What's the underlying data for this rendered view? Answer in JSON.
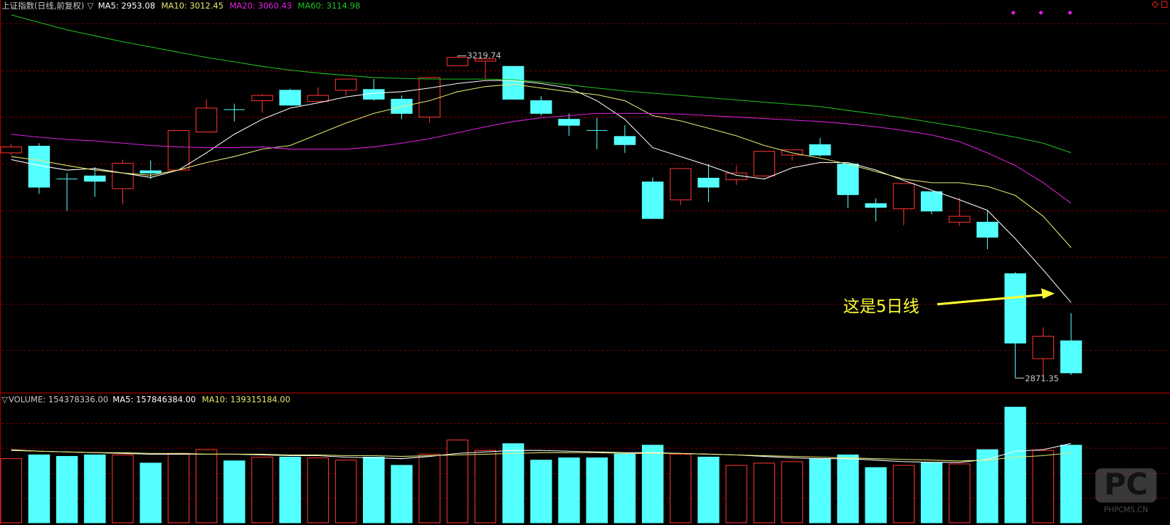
{
  "chart_data": [
    {
      "type": "candlestick",
      "title": "上证指数(日线,前复权)",
      "marker": "▽",
      "up_color": "#ff3232",
      "down_color": "#54ffff",
      "ylim": [
        2856.8,
        3280.2
      ],
      "ygrid": [
        3254.4,
        3203.6,
        3153.6,
        3102.8,
        3052.0,
        3002.0,
        2951.2,
        2901.2
      ],
      "open": [
        3114.9,
        3122.1,
        3086.6,
        3089.9,
        3076.2,
        3095.5,
        3096.3,
        3137.5,
        3161.6,
        3171.3,
        3182.6,
        3170.5,
        3182.6,
        3183.4,
        3172.9,
        3153.6,
        3209.2,
        3214.1,
        3208.4,
        3171.3,
        3151.2,
        3139.1,
        3132.6,
        3083.4,
        3064.1,
        3087.5,
        3085.8,
        3089.9,
        3112.5,
        3123.8,
        3102.8,
        3060.0,
        3054.4,
        3072.9,
        3039.9,
        3039.9,
        2984.2,
        2892.3,
        2911.6
      ],
      "close": [
        3121.3,
        3077.8,
        3086.6,
        3084.2,
        3103.6,
        3093.1,
        3139.1,
        3163.3,
        3161.6,
        3177.0,
        3166.5,
        3177.0,
        3194.7,
        3172.9,
        3157.6,
        3196.3,
        3218.1,
        3216.5,
        3172.9,
        3157.6,
        3144.7,
        3139.1,
        3123.8,
        3043.9,
        3097.9,
        3077.8,
        3093.1,
        3116.5,
        3118.1,
        3112.5,
        3069.7,
        3056.0,
        3081.8,
        3052.0,
        3046.3,
        3023.7,
        2909.2,
        2916.5,
        2877.0
      ],
      "high": [
        3124.6,
        3125.4,
        3093.1,
        3099.5,
        3107.6,
        3106.8,
        3139.1,
        3172.9,
        3168.1,
        3178.6,
        3184.2,
        3185.8,
        3194.7,
        3194.7,
        3177.0,
        3197.1,
        3219.74,
        3216.5,
        3208.4,
        3176.2,
        3157.6,
        3152.8,
        3144.7,
        3088.3,
        3097.9,
        3102.8,
        3101.2,
        3116.5,
        3118.1,
        3131.0,
        3104.4,
        3065.7,
        3081.8,
        3072.9,
        3066.5,
        3052.0,
        2985.8,
        2926.2,
        2941.5
      ],
      "low": [
        3112.5,
        3070.5,
        3052.0,
        3067.3,
        3059.2,
        3086.6,
        3096.3,
        3137.5,
        3148.8,
        3158.4,
        3166.5,
        3169.7,
        3177.0,
        3171.3,
        3151.2,
        3147.9,
        3209.2,
        3195.5,
        3172.9,
        3155.2,
        3133.4,
        3118.9,
        3114.9,
        3043.9,
        3058.4,
        3061.6,
        3080.2,
        3089.9,
        3106.8,
        3110.9,
        3055.2,
        3040.7,
        3036.6,
        3048.7,
        3035.8,
        3010.8,
        2871.35,
        2873.0,
        2874.6
      ],
      "ma": [
        {
          "name": "MA5",
          "legend": "MA5: 2953.08",
          "color": "#ffffff",
          "values": [
            3107.6,
            3101.2,
            3096.3,
            3097.9,
            3093.1,
            3088.3,
            3096.3,
            3114.9,
            3135.0,
            3151.2,
            3163.3,
            3168.9,
            3175.4,
            3179.4,
            3181.0,
            3185.0,
            3189.9,
            3193.1,
            3193.1,
            3189.9,
            3185.0,
            3171.3,
            3151.2,
            3120.5,
            3110.9,
            3101.2,
            3090.7,
            3086.6,
            3098.7,
            3104.4,
            3104.4,
            3096.3,
            3085.0,
            3074.5,
            3064.1,
            3052.8,
            3022.1,
            2988.3,
            2953.08
          ]
        },
        {
          "name": "MA10",
          "legend": "MA10: 3012.45",
          "color": "#e8e870",
          "values": [
            3110.9,
            3106.8,
            3101.2,
            3096.3,
            3093.1,
            3090.7,
            3096.3,
            3104.4,
            3110.9,
            3118.9,
            3122.9,
            3135.0,
            3147.1,
            3157.6,
            3164.9,
            3171.3,
            3181.0,
            3186.6,
            3189.1,
            3185.0,
            3181.0,
            3177.8,
            3171.3,
            3155.2,
            3149.5,
            3141.5,
            3133.4,
            3122.9,
            3114.9,
            3109.2,
            3102.8,
            3094.7,
            3086.6,
            3082.6,
            3082.6,
            3078.6,
            3068.9,
            3046.3,
            3012.45
          ]
        },
        {
          "name": "MA20",
          "legend": "MA20: 3060.43",
          "color": "#e020e0",
          "values": [
            3135.0,
            3131.8,
            3129.4,
            3127.8,
            3125.4,
            3122.9,
            3121.3,
            3120.5,
            3120.5,
            3121.3,
            3118.9,
            3118.9,
            3118.9,
            3121.3,
            3125.4,
            3130.2,
            3136.6,
            3143.1,
            3148.8,
            3152.8,
            3155.2,
            3157.6,
            3157.6,
            3157.6,
            3156.8,
            3155.2,
            3153.6,
            3152.0,
            3150.4,
            3148.8,
            3146.3,
            3143.1,
            3139.1,
            3134.2,
            3127.0,
            3114.9,
            3101.2,
            3082.6,
            3060.43
          ]
        },
        {
          "name": "MA60",
          "legend": "MA60: 3114.98",
          "color": "#20c020",
          "values": [
            3264.1,
            3256.0,
            3247.9,
            3241.5,
            3235.0,
            3229.4,
            3223.7,
            3218.1,
            3213.3,
            3208.4,
            3204.4,
            3201.2,
            3198.7,
            3196.3,
            3195.5,
            3194.7,
            3194.7,
            3194.7,
            3193.9,
            3191.5,
            3188.3,
            3185.0,
            3181.8,
            3179.4,
            3177.0,
            3174.5,
            3172.1,
            3169.7,
            3167.3,
            3164.9,
            3160.8,
            3156.8,
            3152.8,
            3147.9,
            3143.1,
            3137.5,
            3131.8,
            3125.4,
            3114.98
          ]
        }
      ],
      "annotations": [
        {
          "label": "3219.74",
          "value": 3219.74
        },
        {
          "label": "2871.35",
          "value": 2871.35
        }
      ],
      "note": "这是5日线",
      "note_color": "#ffff33"
    },
    {
      "type": "volume",
      "marker": "▽",
      "title": "VOLUME: 154378336.00",
      "ylim": [
        0,
        258300000
      ],
      "ygrid": [
        197400000,
        148400000,
        98000000,
        49000000
      ],
      "values": [
        127660000,
        135080000,
        132110000,
        135080000,
        135080000,
        118750000,
        138050000,
        145470000,
        123210000,
        130630000,
        130630000,
        129140000,
        124690000,
        130630000,
        114300000,
        136560000,
        164770000,
        143990000,
        157350000,
        124690000,
        129140000,
        129140000,
        136560000,
        154380000,
        136560000,
        130630000,
        114300000,
        118750000,
        121720000,
        127660000,
        135080000,
        109850000,
        114300000,
        120240000,
        117270000,
        145470000,
        230080000,
        143990000,
        154378336
      ],
      "ma": [
        {
          "name": "MA5",
          "legend": "MA5: 157846384.00",
          "color": "#ffffff",
          "values": [
            145470000,
            142500000,
            141020000,
            139530000,
            138050000,
            136560000,
            136560000,
            136560000,
            136560000,
            135080000,
            133600000,
            133600000,
            130630000,
            129140000,
            127660000,
            132110000,
            138050000,
            141020000,
            143990000,
            143990000,
            142500000,
            141020000,
            139530000,
            139530000,
            138050000,
            136560000,
            135080000,
            132110000,
            129140000,
            127660000,
            127660000,
            124690000,
            121720000,
            120240000,
            120240000,
            126170000,
            142500000,
            145470000,
            157846384
          ]
        },
        {
          "name": "MA10",
          "legend": "MA10: 139315184.00",
          "color": "#e8e870",
          "values": [
            143990000,
            142500000,
            141020000,
            139530000,
            139530000,
            138050000,
            138050000,
            136560000,
            136560000,
            136560000,
            135080000,
            135080000,
            133600000,
            133600000,
            132110000,
            133600000,
            135080000,
            136560000,
            138050000,
            139530000,
            139530000,
            139530000,
            138050000,
            138050000,
            138050000,
            136560000,
            135080000,
            133600000,
            132110000,
            130630000,
            129140000,
            127660000,
            126170000,
            124690000,
            123210000,
            124690000,
            130630000,
            133600000,
            139315184
          ]
        }
      ]
    }
  ],
  "watermark": {
    "logo": "PC",
    "site": "PHPCMS.CN"
  }
}
